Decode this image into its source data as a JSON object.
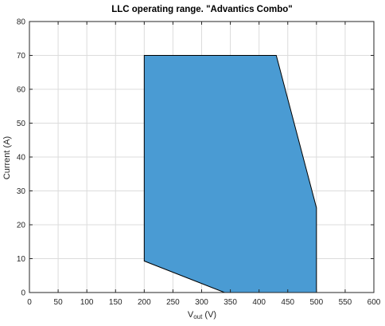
{
  "chart_data": {
    "type": "area",
    "title": "LLC operating range. \"Advantics Combo\"",
    "xlabel": {
      "main": "V",
      "sub": "out",
      "unit": " (V)"
    },
    "ylabel": "Current (A)",
    "xlim": [
      0,
      600
    ],
    "ylim": [
      0,
      80
    ],
    "xticks": [
      0,
      50,
      100,
      150,
      200,
      250,
      300,
      350,
      400,
      450,
      500,
      550,
      600
    ],
    "yticks": [
      0,
      10,
      20,
      30,
      40,
      50,
      60,
      70,
      80
    ],
    "grid": true,
    "series": [
      {
        "x": [
          200,
          430,
          500,
          500,
          340,
          200
        ],
        "y": [
          70,
          70,
          25,
          0,
          0,
          9.3
        ],
        "fill_color": "#4a9bd3",
        "edge_color": "#000000"
      }
    ]
  }
}
